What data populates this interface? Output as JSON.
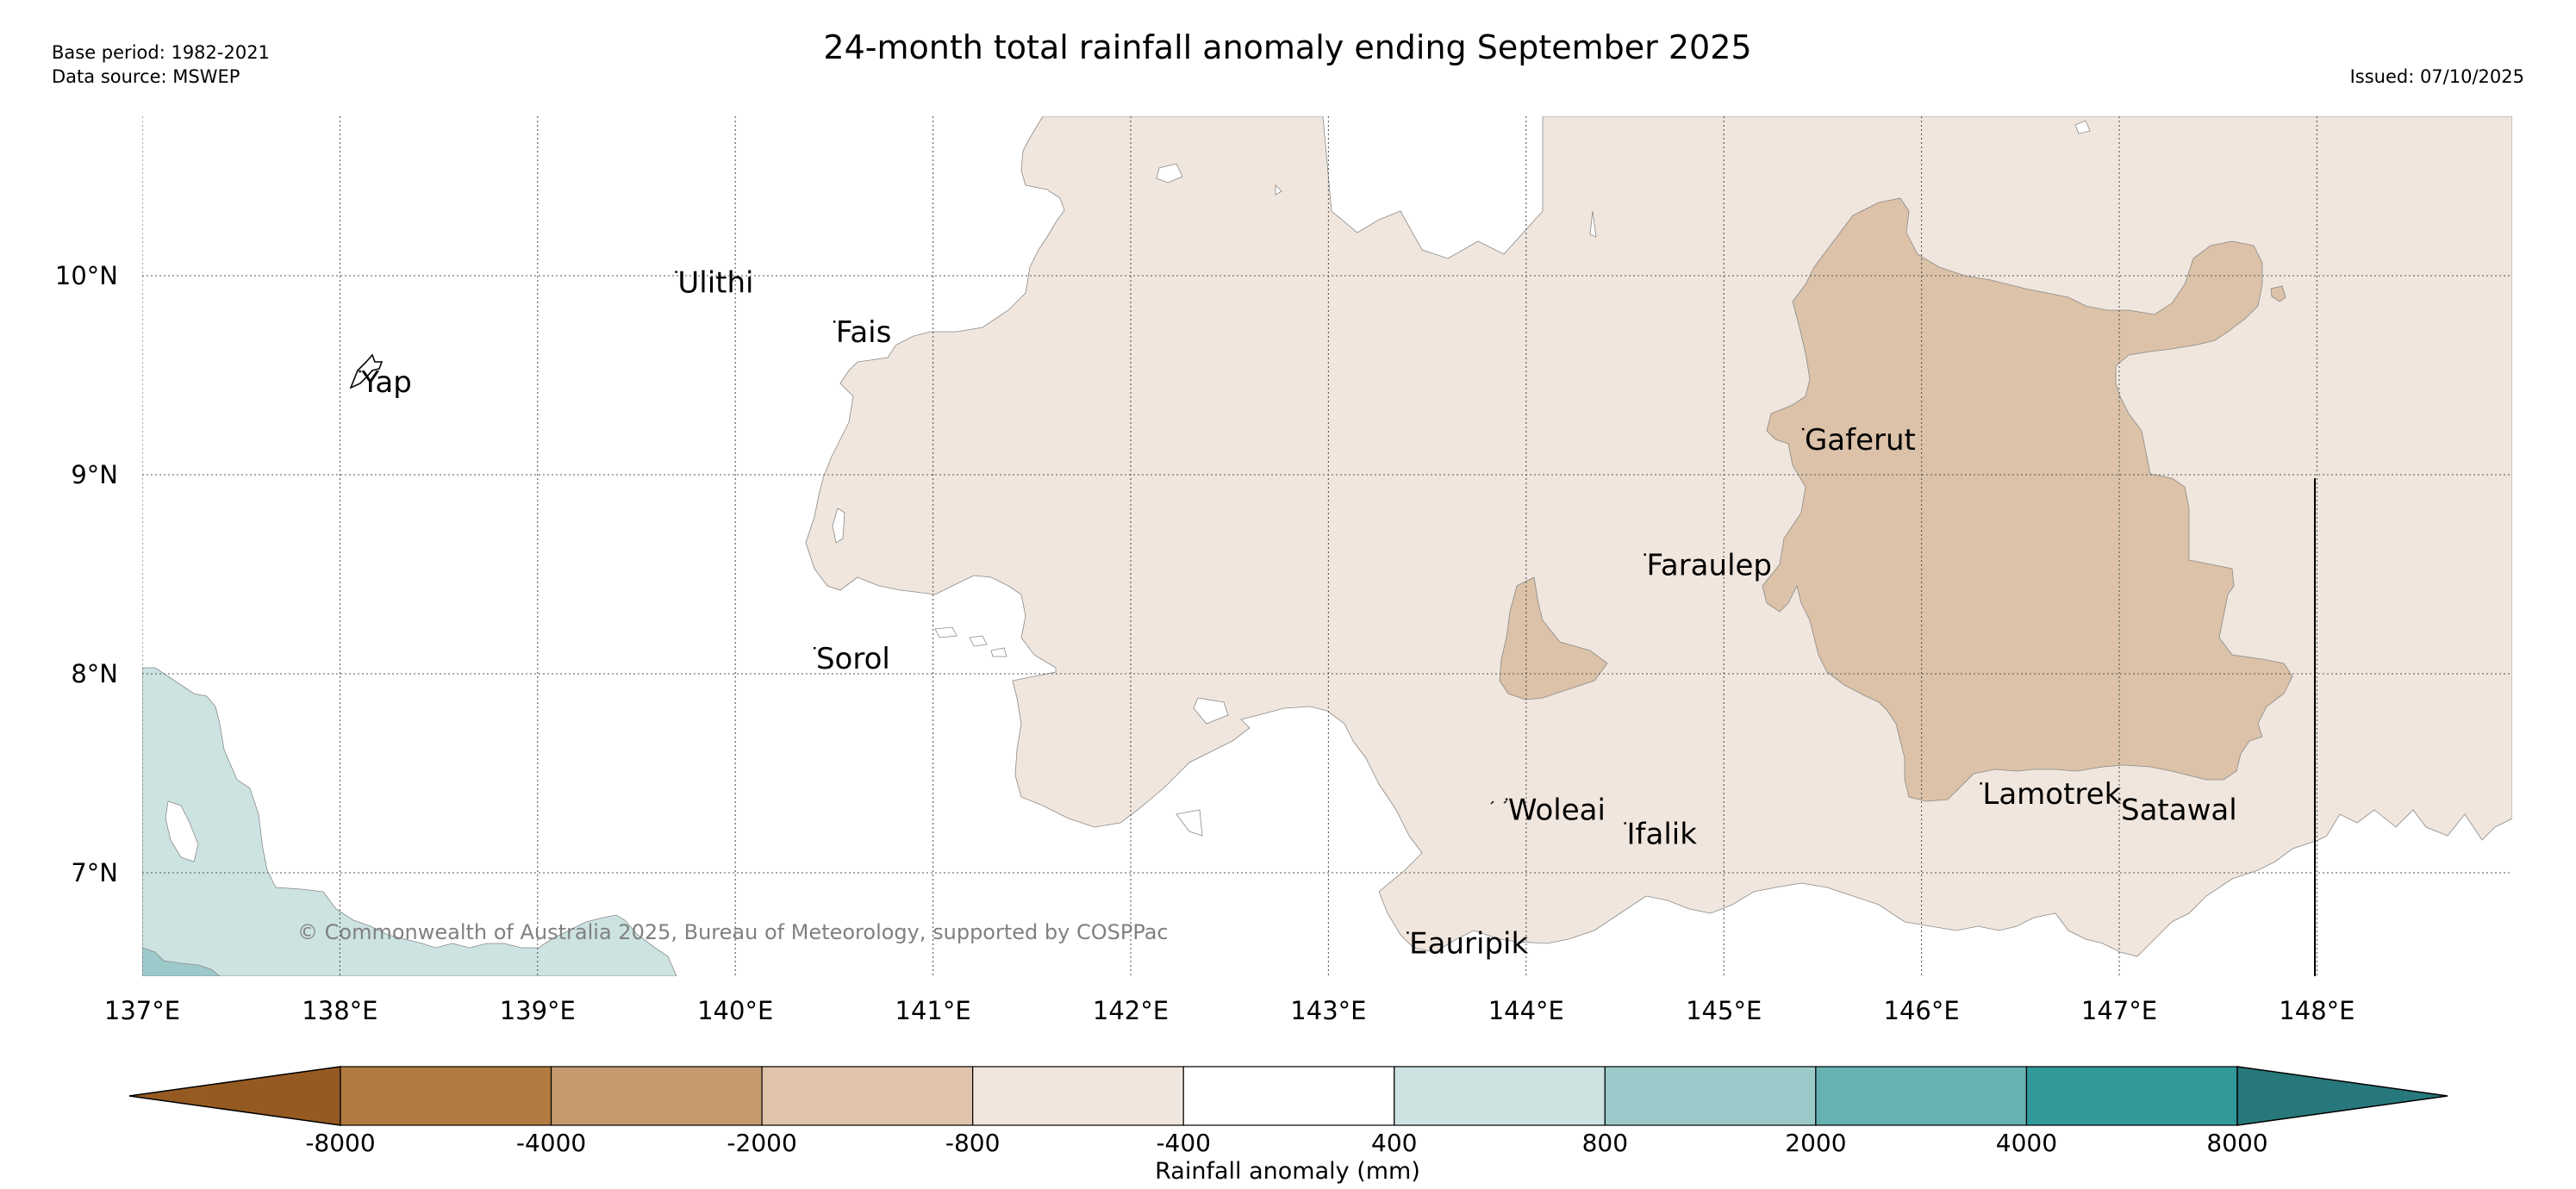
{
  "title": "24-month total rainfall anomaly ending September 2025",
  "meta": {
    "base_period": "Base period: 1982-2021",
    "data_source": "Data source: MSWEP",
    "issued": "Issued: 07/10/2025"
  },
  "copyright": "© Commonwealth of Australia 2025, Bureau of Meteorology, supported by COSPPac",
  "lon_labels": [
    "137°E",
    "138°E",
    "139°E",
    "140°E",
    "141°E",
    "142°E",
    "143°E",
    "144°E",
    "145°E",
    "146°E",
    "147°E",
    "148°E"
  ],
  "lat_labels": [
    "10°N",
    "9°N",
    "8°N",
    "7°N"
  ],
  "places": [
    {
      "name": "Yap",
      "lon": 138.1,
      "lat": 9.52
    },
    {
      "name": "Ulithi",
      "lon": 139.7,
      "lat": 10.02
    },
    {
      "name": "Fais",
      "lon": 140.5,
      "lat": 9.77
    },
    {
      "name": "Sorol",
      "lon": 140.4,
      "lat": 8.13
    },
    {
      "name": "Gaferut",
      "lon": 145.4,
      "lat": 9.23
    },
    {
      "name": "Faraulep",
      "lon": 144.6,
      "lat": 8.6
    },
    {
      "name": "Woleai",
      "lon": 143.9,
      "lat": 7.37
    },
    {
      "name": "Ifalik",
      "lon": 144.5,
      "lat": 7.25
    },
    {
      "name": "Lamotrek",
      "lon": 146.3,
      "lat": 7.45
    },
    {
      "name": "Satawal",
      "lon": 147.0,
      "lat": 7.37
    },
    {
      "name": "Eauripik",
      "lon": 143.4,
      "lat": 6.7
    }
  ],
  "legend": {
    "label": "Rainfall anomaly (mm)",
    "ticks": [
      "-8000",
      "-4000",
      "-2000",
      "-800",
      "-400",
      "400",
      "800",
      "2000",
      "4000",
      "8000"
    ],
    "colors": [
      "#955a22",
      "#b17a3e",
      "#c49a6e",
      "#dfc3aa",
      "#f1e6dd",
      "#ffffff",
      "#cce3e2",
      "#9ccaca",
      "#66b1b1",
      "#31999a",
      "#27787a"
    ]
  },
  "colors": {
    "dry_light": "#f1e6dd",
    "dry_mid": "#dbc2a8",
    "wet_light": "#cce3e2",
    "wet_mid": "#9ccaca"
  }
}
